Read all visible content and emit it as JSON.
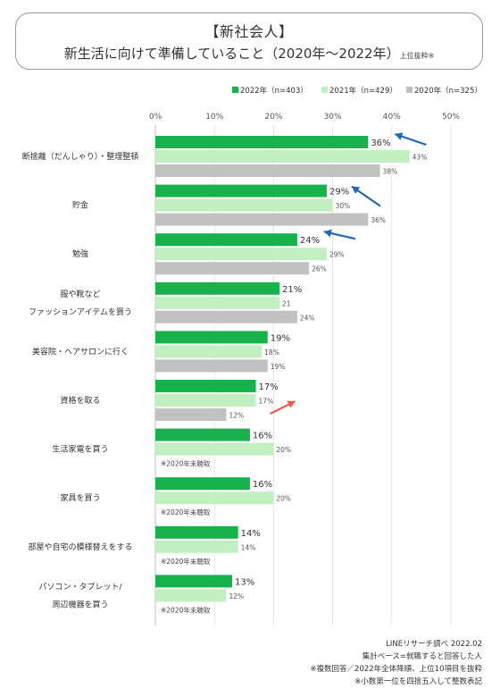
{
  "header": {
    "title": "【新社会人】",
    "subtitle": "新生活に向けて準備していること（2020年〜2022年）",
    "subtitle_note": "上位抜粋※"
  },
  "chart_data": {
    "type": "bar",
    "orientation": "horizontal",
    "x_ticks": [
      "0%",
      "10%",
      "20%",
      "30%",
      "40%",
      "50%"
    ],
    "xlim": [
      0,
      50
    ],
    "grid": true,
    "legend_position": "top-right",
    "categories": [
      [
        "断捨離（だんしゃり）・整理整頓"
      ],
      [
        "貯金"
      ],
      [
        "勉強"
      ],
      [
        "服や靴など",
        "ファッションアイテムを買う"
      ],
      [
        "美容院・ヘアサロンに行く"
      ],
      [
        "資格を取る"
      ],
      [
        "生活家電を買う"
      ],
      [
        "家具を買う"
      ],
      [
        "部屋や自宅の模様替えをする"
      ],
      [
        "パソコン・タブレット/",
        "周辺機器を買う"
      ]
    ],
    "series": [
      {
        "name": "2022年（n=403）",
        "color": "#17b24b",
        "values": [
          36,
          29,
          24,
          21,
          19,
          17,
          16,
          16,
          14,
          13
        ],
        "labels": [
          "36%",
          "29%",
          "24%",
          "21%",
          "19%",
          "17%",
          "16%",
          "16%",
          "14%",
          "13%"
        ]
      },
      {
        "name": "2021年（n=429）",
        "color": "#c2efc1",
        "values": [
          43,
          30,
          29,
          21,
          18,
          17,
          20,
          20,
          14,
          12
        ],
        "labels": [
          "43%",
          "30%",
          "29%",
          "21",
          "18%",
          "17%",
          "20%",
          "20%",
          "14%",
          "12%"
        ]
      },
      {
        "name": "2020年（n=325）",
        "color": "#c1c1c1",
        "values": [
          38,
          36,
          26,
          24,
          19,
          12,
          null,
          null,
          null,
          null
        ],
        "labels": [
          "38%",
          "36%",
          "26%",
          "24%",
          "19%",
          "12%",
          null,
          null,
          null,
          null
        ]
      }
    ],
    "not_surveyed_note": "※2020年未聴取",
    "arrows": [
      {
        "category_index": 0,
        "direction": "down",
        "color": "#1f67b5"
      },
      {
        "category_index": 1,
        "direction": "down",
        "color": "#1f67b5"
      },
      {
        "category_index": 2,
        "direction": "down",
        "color": "#1f67b5"
      },
      {
        "category_index": 5,
        "direction": "up",
        "color": "#e8604c"
      }
    ]
  },
  "footer": {
    "lines": [
      "LINEリサーチ調べ 2022.02",
      "集計ベース=就職すると回答した人",
      "※複数回答／2022年全体降順、上位10項目を抜粋",
      "※小数第一位を四捨五入して整数表記"
    ]
  }
}
